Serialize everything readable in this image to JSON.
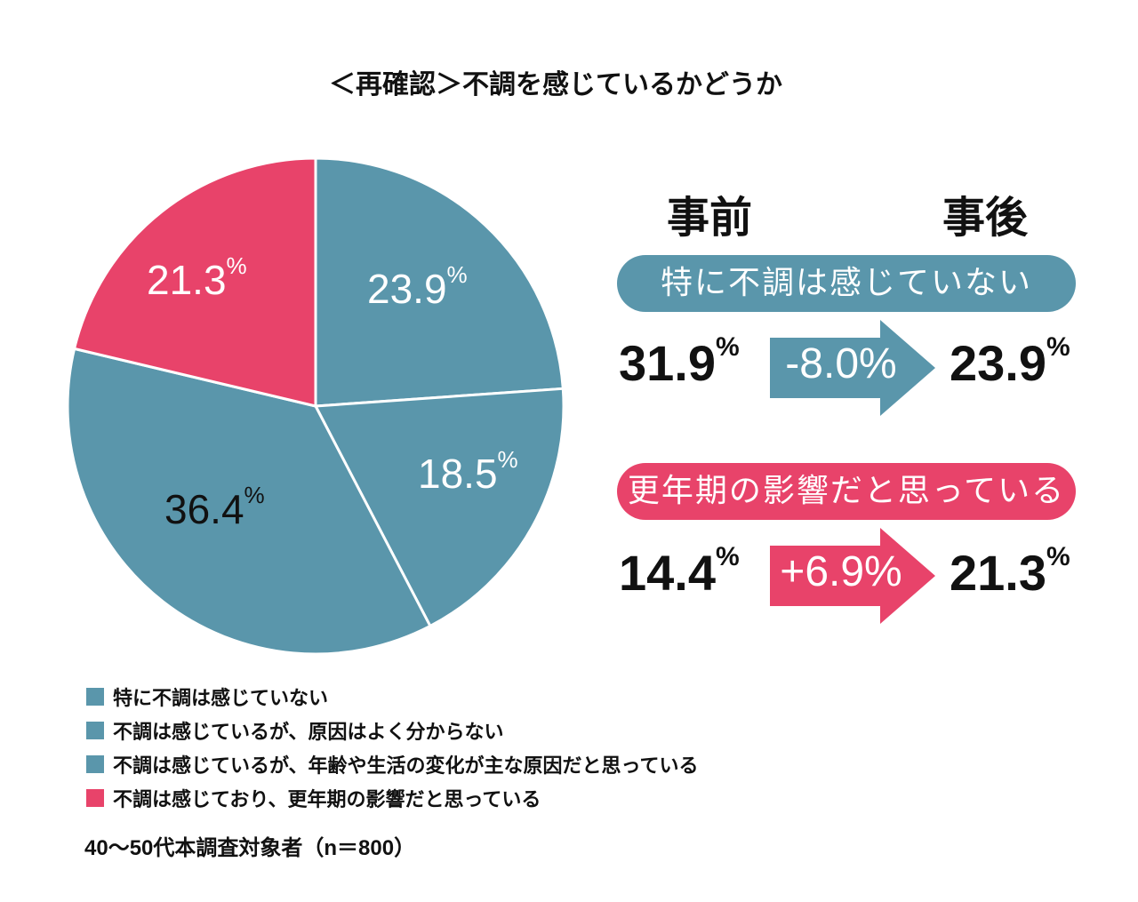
{
  "colors": {
    "teal": "#5a96ab",
    "pink": "#e8436a"
  },
  "chart_data": {
    "type": "pie",
    "title": "＜再確認＞不調を感じているかどうか",
    "slices": [
      {
        "label": "特に不調は感じていない",
        "value": 23.9,
        "display": "23.9",
        "color": "#5a96ab"
      },
      {
        "label": "不調は感じているが、原因はよく分からない",
        "value": 18.5,
        "display": "18.5",
        "color": "#5a96ab"
      },
      {
        "label": "不調は感じているが、年齢や生活の変化が主な原因だと思っている",
        "value": 36.4,
        "display": "36.4",
        "color": "#5a96ab"
      },
      {
        "label": "不調は感じており、更年期の影響だと思っている",
        "value": 21.3,
        "display": "21.3",
        "color": "#e8436a"
      }
    ],
    "unit": "%",
    "start": "12 o'clock, clockwise"
  },
  "comparison": {
    "before_label": "事前",
    "after_label": "事後",
    "rows": [
      {
        "label": "特に不調は感じていない",
        "before": "31.9",
        "change": "-8.0%",
        "after": "23.9"
      },
      {
        "label": "更年期の影響だと思っている",
        "before": "14.4",
        "change": "+6.9%",
        "after": "21.3"
      }
    ]
  },
  "note": "40〜50代本調査対象者（n＝800）"
}
